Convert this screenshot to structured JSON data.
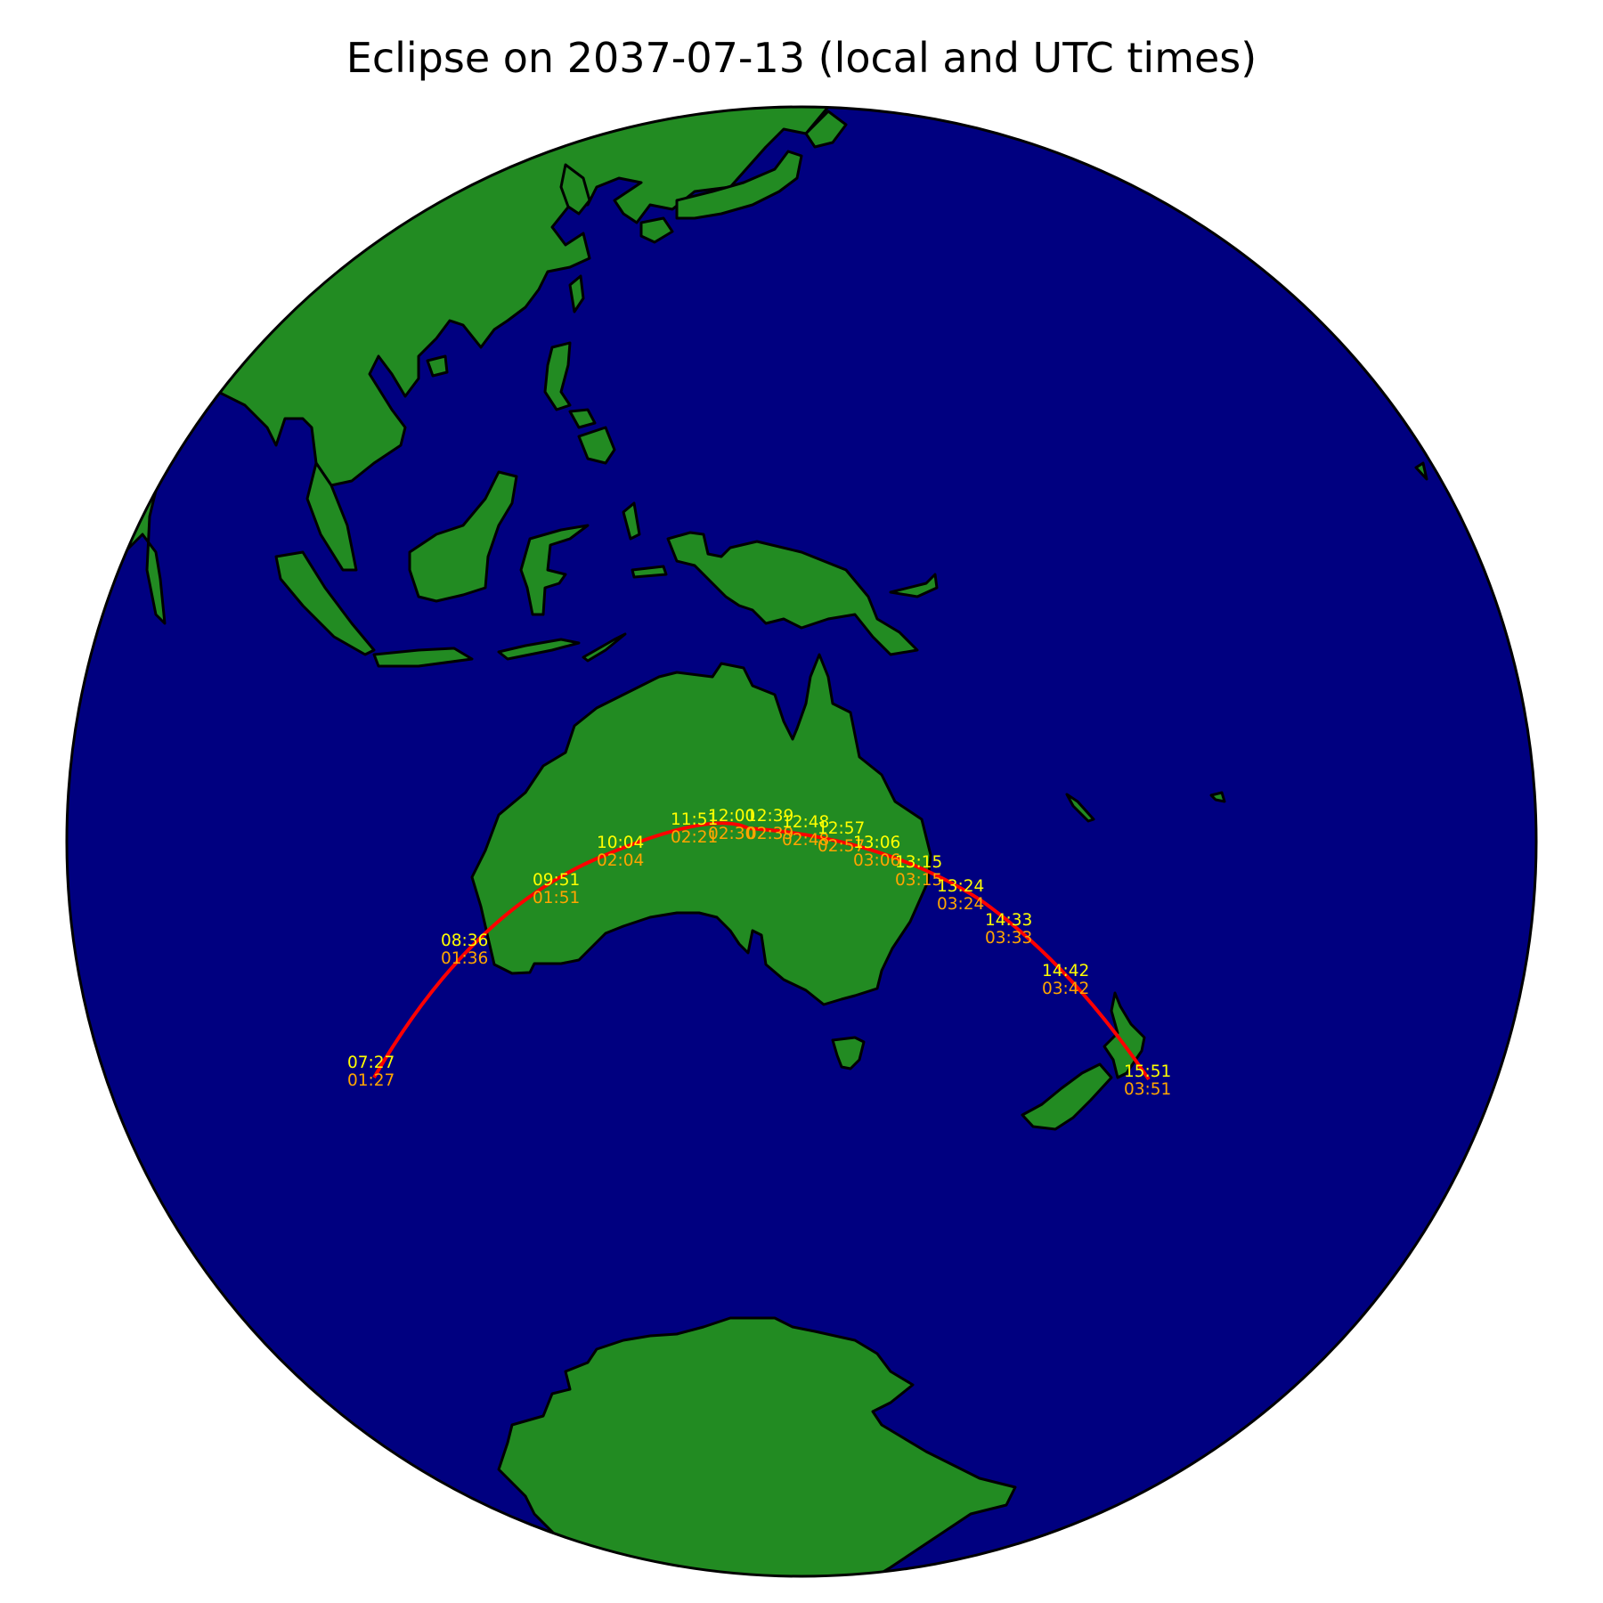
{
  "title": "Eclipse on 2037-07-13 (local and UTC times)",
  "colors": {
    "ocean": "#000080",
    "land": "#228b22",
    "coast": "#000000",
    "path": "#ff0000",
    "local_label": "#ffff00",
    "utc_label": "#ffa500"
  },
  "path_labels": [
    {
      "id": "p1",
      "local": "07:27",
      "utc": "01:27"
    },
    {
      "id": "p2",
      "local": "08:36",
      "utc": "01:36"
    },
    {
      "id": "p3",
      "local": "09:51",
      "utc": "01:51"
    },
    {
      "id": "p4",
      "local": "10:04",
      "utc": "02:04"
    },
    {
      "id": "p5",
      "local": "11:51",
      "utc": "02:21"
    },
    {
      "id": "p6",
      "local": "12:00",
      "utc": "02:30"
    },
    {
      "id": "p7",
      "local": "12:39",
      "utc": "02:39"
    },
    {
      "id": "p8",
      "local": "12:48",
      "utc": "02:48"
    },
    {
      "id": "p9",
      "local": "12:57",
      "utc": "02:57"
    },
    {
      "id": "p10",
      "local": "13:06",
      "utc": "03:06"
    },
    {
      "id": "p11",
      "local": "13:15",
      "utc": "03:15"
    },
    {
      "id": "p12",
      "local": "13:24",
      "utc": "03:24"
    },
    {
      "id": "p13",
      "local": "14:33",
      "utc": "03:33"
    },
    {
      "id": "p14",
      "local": "14:42",
      "utc": "03:42"
    },
    {
      "id": "p15",
      "local": "15:51",
      "utc": "03:51"
    }
  ]
}
